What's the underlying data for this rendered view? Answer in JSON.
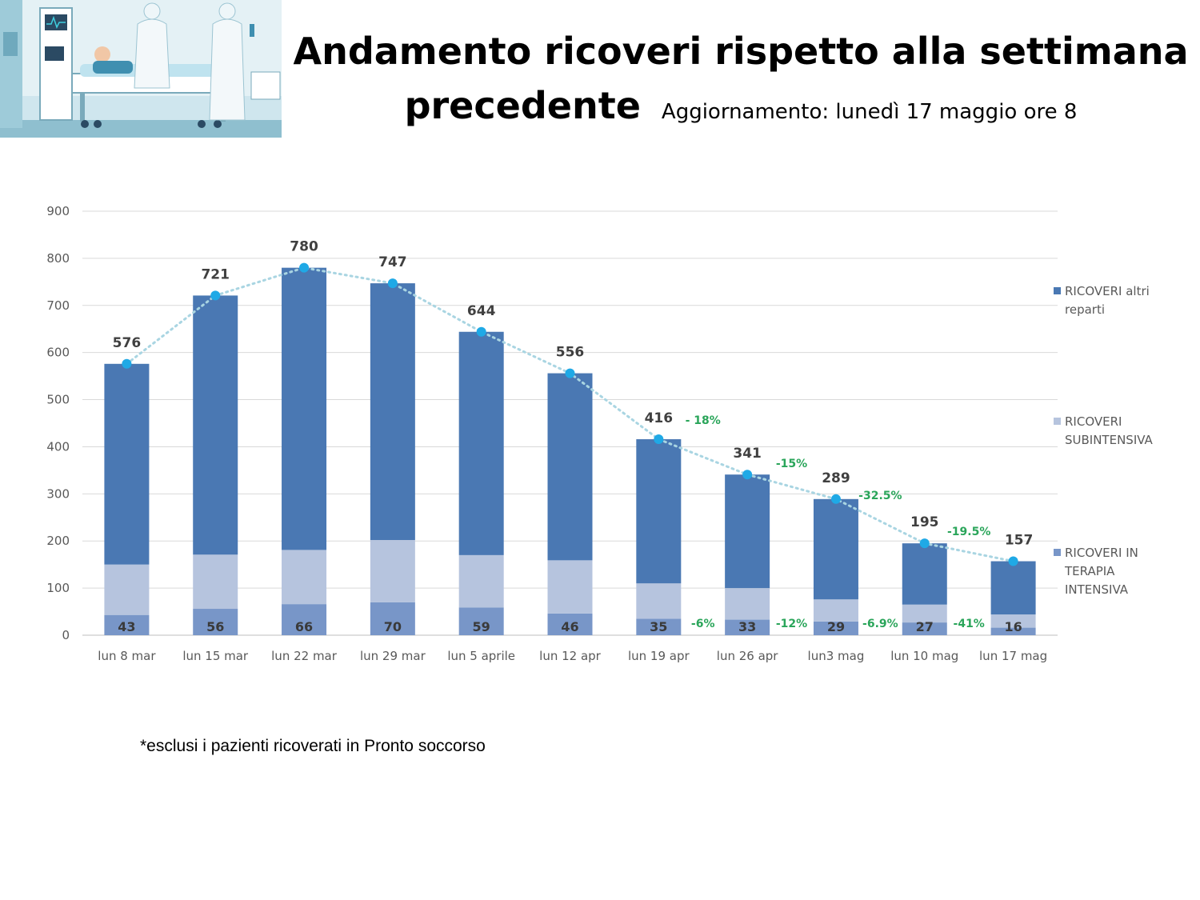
{
  "title": {
    "line1": "Andamento ricoveri rispetto alla settimana",
    "line2": "precedente",
    "subtitle": "Aggiornamento: lunedì 17 maggio ore 8"
  },
  "footnote": "*esclusi i pazienti ricoverati in Pronto soccorso",
  "illustration": {
    "icon": "hospital-icu-illustration"
  },
  "colors": {
    "altri": "#4a78b3",
    "sub": "#b6c4de",
    "ti": "#7896c8",
    "line": "#a9d5e2",
    "marker": "#1fa9e6",
    "pct": "#2aa55a",
    "grid": "#d9d9d9"
  },
  "chart_data": {
    "type": "bar",
    "stacked": true,
    "categories": [
      "lun 8 mar",
      "lun 15 mar",
      "lun 22 mar",
      "lun 29 mar",
      "lun 5 aprile",
      "lun 12 apr",
      "lun 19 apr",
      "lun 26 apr",
      "lun3 mag",
      "lun 10 mag",
      "lun 17 mag"
    ],
    "series": [
      {
        "name": "RICOVERI IN TERAPIA INTENSIVA",
        "values": [
          43,
          56,
          66,
          70,
          59,
          46,
          35,
          33,
          29,
          27,
          16
        ]
      },
      {
        "name": "RICOVERI SUBINTENSIVA",
        "values": [
          107,
          115,
          115,
          132,
          111,
          113,
          75,
          67,
          47,
          38,
          28
        ]
      },
      {
        "name": "RICOVERI altri reparti",
        "values": [
          426,
          550,
          599,
          545,
          474,
          397,
          306,
          241,
          213,
          130,
          113
        ]
      }
    ],
    "totals": [
      576,
      721,
      780,
      747,
      644,
      556,
      416,
      341,
      289,
      195,
      157
    ],
    "total_labels": [
      "576",
      "721",
      "780",
      "747",
      "644",
      "556",
      "416",
      "341",
      "289",
      "195",
      "157"
    ],
    "icu_labels": [
      "43",
      "56",
      "66",
      "70",
      "59",
      "46",
      "35",
      "33",
      "29",
      "27",
      "16"
    ],
    "pct_total": [
      {
        "after_index": 6,
        "text": "- 18%",
        "level": 448
      },
      {
        "after_index": 7,
        "text": "-15%",
        "level": 357
      },
      {
        "after_index": 8,
        "text": "-32.5%",
        "level": 289
      },
      {
        "after_index": 9,
        "text": "-19.5%",
        "level": 212
      }
    ],
    "pct_icu": [
      {
        "after_index": 6,
        "text": "-6%"
      },
      {
        "after_index": 7,
        "text": "-12%"
      },
      {
        "after_index": 8,
        "text": "-6.9%"
      },
      {
        "after_index": 9,
        "text": "-41%"
      }
    ],
    "legend": [
      {
        "label_lines": [
          "RICOVERI altri",
          "reparti"
        ],
        "series": "altri"
      },
      {
        "label_lines": [
          "RICOVERI",
          "SUBINTENSIVA"
        ],
        "series": "sub"
      },
      {
        "label_lines": [
          "RICOVERI IN",
          "TERAPIA",
          "INTENSIVA"
        ],
        "series": "ti"
      }
    ],
    "y_ticks": [
      "0",
      "100",
      "200",
      "300",
      "400",
      "500",
      "600",
      "700",
      "800",
      "900"
    ],
    "ylim": [
      0,
      900
    ],
    "grid": true,
    "legend_position": "right"
  }
}
